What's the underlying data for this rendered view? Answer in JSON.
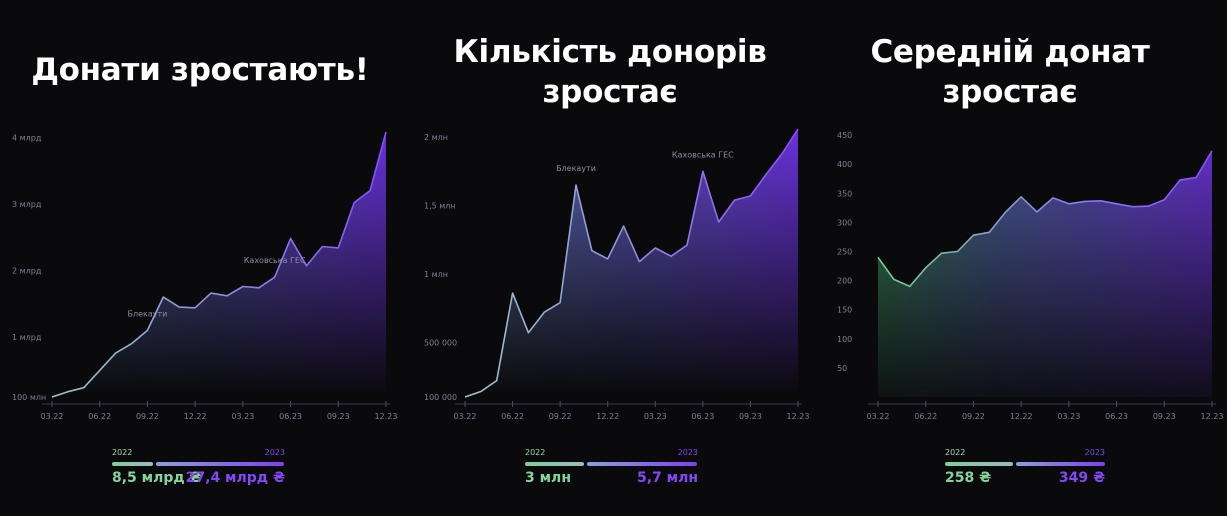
{
  "chart_data": [
    {
      "type": "area",
      "title": "Донати зростають!",
      "x": [
        "03.22",
        "04.22",
        "05.22",
        "06.22",
        "07.22",
        "08.22",
        "09.22",
        "10.22",
        "11.22",
        "12.22",
        "01.23",
        "02.23",
        "03.23",
        "04.23",
        "05.23",
        "06.23",
        "07.23",
        "08.23",
        "09.23",
        "10.23",
        "11.23",
        "12.23"
      ],
      "x_tick_labels": [
        "03.22",
        "06.22",
        "09.22",
        "12.22",
        "03.23",
        "06.23",
        "09.23",
        "12.23"
      ],
      "values": [
        0.1,
        0.18,
        0.24,
        0.5,
        0.76,
        0.9,
        1.1,
        1.6,
        1.45,
        1.44,
        1.66,
        1.62,
        1.76,
        1.74,
        1.9,
        2.48,
        2.07,
        2.36,
        2.34,
        3.02,
        3.2,
        4.08
      ],
      "y_ticks": [
        0.1,
        1,
        2,
        3,
        4
      ],
      "y_tick_labels": [
        "100 млн",
        "1 млрд",
        "2 млрд",
        "3 млрд",
        "4 млрд"
      ],
      "ylim": [
        0.1,
        4.08
      ],
      "annotations": [
        {
          "text": "Блекаути",
          "x": "09.22"
        },
        {
          "text": "Каховська ГЕС",
          "x": "05.23"
        }
      ],
      "legend": {
        "year_a": "2022",
        "year_b": "2023",
        "value_a": "8,5 млрд ₴",
        "value_b": "27,4 млрд ₴",
        "share_a": 0.237
      }
    },
    {
      "type": "area",
      "title": "Кількість донорів зростає",
      "x": [
        "03.22",
        "04.22",
        "05.22",
        "06.22",
        "07.22",
        "08.22",
        "09.22",
        "10.22",
        "11.22",
        "12.22",
        "01.23",
        "02.23",
        "03.23",
        "04.23",
        "05.23",
        "06.23",
        "07.23",
        "08.23",
        "09.23",
        "10.23",
        "11.23",
        "12.23"
      ],
      "x_tick_labels": [
        "03.22",
        "06.22",
        "09.22",
        "12.22",
        "03.23",
        "06.23",
        "09.23",
        "12.23"
      ],
      "values": [
        0.1,
        0.14,
        0.22,
        0.86,
        0.57,
        0.72,
        0.79,
        1.65,
        1.17,
        1.11,
        1.35,
        1.09,
        1.19,
        1.13,
        1.21,
        1.75,
        1.38,
        1.54,
        1.57,
        1.73,
        1.88,
        2.06
      ],
      "y_ticks": [
        0.1,
        0.5,
        1,
        1.5,
        2
      ],
      "y_tick_labels": [
        "100 000",
        "500 000",
        "1 млн",
        "1,5 млн",
        "2 млн"
      ],
      "ylim": [
        0.1,
        2.06
      ],
      "annotations": [
        {
          "text": "Блекаути",
          "x": "10.22"
        },
        {
          "text": "Каховська ГЕС",
          "x": "06.23"
        }
      ],
      "legend": {
        "year_a": "2022",
        "year_b": "2023",
        "value_a": "3 млн",
        "value_b": "5,7 млн",
        "share_a": 0.345
      }
    },
    {
      "type": "area",
      "title": "Середній донат зростає",
      "x": [
        "03.22",
        "04.22",
        "05.22",
        "06.22",
        "07.22",
        "08.22",
        "09.22",
        "10.22",
        "11.22",
        "12.22",
        "01.23",
        "02.23",
        "03.23",
        "04.23",
        "05.23",
        "06.23",
        "07.23",
        "08.23",
        "09.23",
        "10.23",
        "11.23",
        "12.23"
      ],
      "x_tick_labels": [
        "03.22",
        "06.22",
        "09.22",
        "12.22",
        "03.23",
        "06.23",
        "09.23",
        "12.23"
      ],
      "values": [
        240,
        202,
        190,
        222,
        247,
        250,
        278,
        283,
        317,
        344,
        318,
        342,
        332,
        336,
        337,
        332,
        327,
        328,
        339,
        373,
        377,
        423
      ],
      "y_ticks": [
        50,
        100,
        150,
        200,
        250,
        300,
        350,
        400,
        450
      ],
      "y_tick_labels": [
        "50",
        "100",
        "150",
        "200",
        "250",
        "300",
        "350",
        "400",
        "450"
      ],
      "ylim": [
        0,
        457
      ],
      "annotations": [],
      "legend": {
        "year_a": "2022",
        "year_b": "2023",
        "value_a": "258 ₴",
        "value_b": "349 ₴",
        "share_a": 0.425
      }
    }
  ],
  "colors": {
    "background": "#0a0a0c",
    "green": "#6fd38a",
    "green_soft": "#8fcfa0",
    "purple": "#7a3ef0",
    "purple_bright": "#8a4dff",
    "tick": "#7d7f96"
  }
}
